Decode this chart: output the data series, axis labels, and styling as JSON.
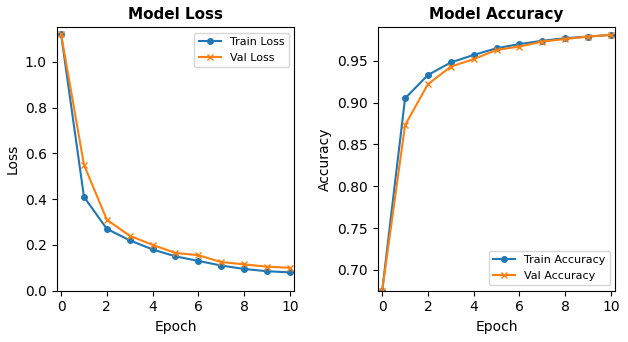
{
  "epochs": [
    0,
    1,
    2,
    3,
    4,
    5,
    6,
    7,
    8,
    9,
    10
  ],
  "train_loss": [
    1.12,
    0.41,
    0.27,
    0.22,
    0.18,
    0.15,
    0.13,
    0.11,
    0.095,
    0.085,
    0.08
  ],
  "val_loss": [
    1.12,
    0.55,
    0.31,
    0.24,
    0.2,
    0.165,
    0.155,
    0.125,
    0.115,
    0.105,
    0.1
  ],
  "train_acc": [
    0.675,
    0.905,
    0.933,
    0.948,
    0.957,
    0.965,
    0.97,
    0.974,
    0.977,
    0.979,
    0.981
  ],
  "val_acc": [
    0.675,
    0.873,
    0.922,
    0.943,
    0.952,
    0.963,
    0.967,
    0.973,
    0.976,
    0.979,
    0.981
  ],
  "loss_title": "Model Loss",
  "acc_title": "Model Accuracy",
  "xlabel": "Epoch",
  "loss_ylabel": "Loss",
  "acc_ylabel": "Accuracy",
  "train_loss_label": "Train Loss",
  "val_loss_label": "Val Loss",
  "train_acc_label": "Train Accuracy",
  "val_acc_label": "Val Accuracy",
  "blue_color": "#1f77b4",
  "orange_color": "#ff7f0e",
  "loss_ylim": [
    0,
    1.15
  ],
  "acc_ylim": [
    0.675,
    0.99
  ],
  "xlim": [
    -0.2,
    10.2
  ]
}
